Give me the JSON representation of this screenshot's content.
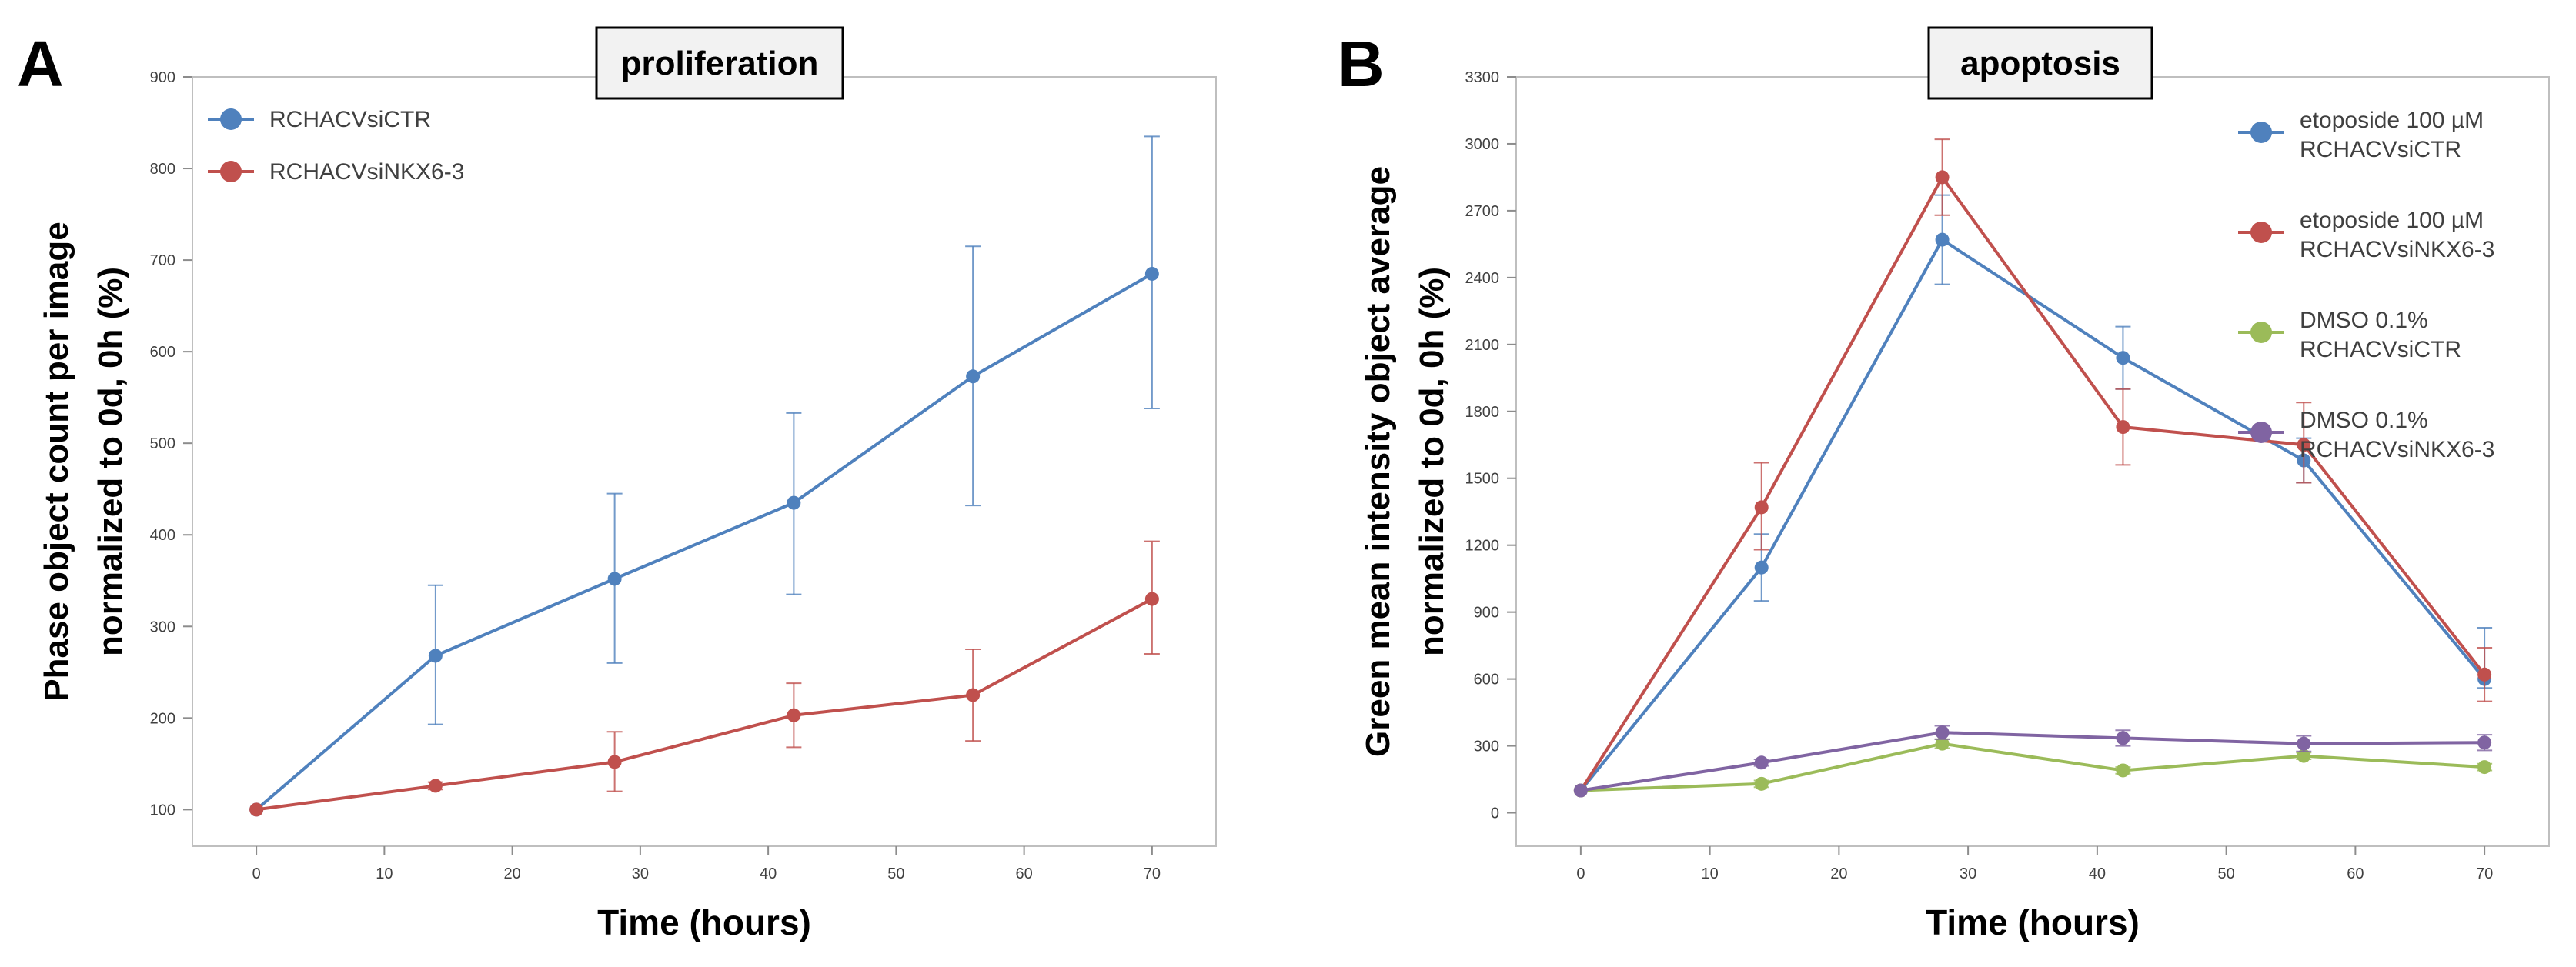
{
  "chart_data": [
    {
      "panel_label": "A",
      "type": "line",
      "title": "proliferation",
      "xlabel": "Time (hours)",
      "ylabel_line1": "Phase object count per image",
      "ylabel_line2": "normalized to 0d, 0h (%)",
      "xlim": [
        -5,
        75
      ],
      "ylim": [
        60,
        900
      ],
      "xticks": [
        0,
        10,
        20,
        30,
        40,
        50,
        60,
        70
      ],
      "yticks": [
        100,
        200,
        300,
        400,
        500,
        600,
        700,
        800,
        900
      ],
      "x": [
        0,
        14,
        28,
        42,
        56,
        70
      ],
      "legend_position": "top-left",
      "series": [
        {
          "name": "RCHACVsiCTR",
          "color": "#4f81bd",
          "values": [
            100,
            268,
            352,
            435,
            573,
            685
          ],
          "error_low": [
            100,
            193,
            260,
            335,
            432,
            538
          ],
          "error_high": [
            100,
            345,
            445,
            533,
            715,
            835
          ]
        },
        {
          "name": "RCHACVsiNKX6-3",
          "color": "#c0504d",
          "values": [
            100,
            126,
            152,
            203,
            225,
            330
          ],
          "error_low": [
            100,
            122,
            120,
            168,
            175,
            270
          ],
          "error_high": [
            100,
            130,
            185,
            238,
            275,
            393
          ]
        }
      ]
    },
    {
      "panel_label": "B",
      "type": "line",
      "title": "apoptosis",
      "xlabel": "Time (hours)",
      "ylabel_line1": "Green mean intensity object average",
      "ylabel_line2": "normalized to 0d, 0h (%)",
      "xlim": [
        -5,
        75
      ],
      "ylim": [
        -150,
        3300
      ],
      "xticks": [
        0,
        10,
        20,
        30,
        40,
        50,
        60,
        70
      ],
      "yticks": [
        0,
        300,
        600,
        900,
        1200,
        1500,
        1800,
        2100,
        2400,
        2700,
        3000,
        3300
      ],
      "x": [
        0,
        14,
        28,
        42,
        56,
        70
      ],
      "legend_position": "top-right",
      "series": [
        {
          "name_line1": "etoposide 100 µM",
          "name_line2": "RCHACVsiCTR",
          "color": "#4f81bd",
          "values": [
            100,
            1100,
            2570,
            2040,
            1580,
            600
          ],
          "error_low": [
            100,
            950,
            2370,
            1900,
            1480,
            560
          ],
          "error_high": [
            100,
            1250,
            2770,
            2180,
            1680,
            830
          ]
        },
        {
          "name_line1": "etoposide 100 µM",
          "name_line2": "RCHACVsiNKX6-3",
          "color": "#c0504d",
          "values": [
            100,
            1370,
            2850,
            1730,
            1650,
            620
          ],
          "error_low": [
            100,
            1180,
            2680,
            1560,
            1480,
            500
          ],
          "error_high": [
            100,
            1570,
            3020,
            1900,
            1840,
            740
          ]
        },
        {
          "name_line1": "DMSO 0.1%",
          "name_line2": "RCHACVsiCTR",
          "color": "#9bbb59",
          "values": [
            100,
            130,
            310,
            190,
            255,
            205
          ],
          "error_low": [
            100,
            115,
            290,
            175,
            240,
            190
          ],
          "error_high": [
            100,
            145,
            330,
            205,
            270,
            220
          ]
        },
        {
          "name_line1": "DMSO 0.1%",
          "name_line2": "RCHACVsiNKX6-3",
          "color": "#8064a2",
          "values": [
            100,
            225,
            360,
            335,
            310,
            315
          ],
          "error_low": [
            100,
            210,
            330,
            300,
            275,
            280
          ],
          "error_high": [
            100,
            240,
            390,
            370,
            345,
            350
          ]
        }
      ]
    }
  ]
}
